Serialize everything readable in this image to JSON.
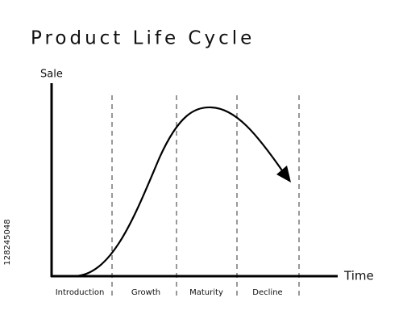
{
  "title": "Product Life Cycle",
  "axes": {
    "y_label": "Sale",
    "x_label": "Time"
  },
  "stages": [
    "Introduction",
    "Growth",
    "Maturity",
    "Decline"
  ],
  "watermark": "128245048"
}
